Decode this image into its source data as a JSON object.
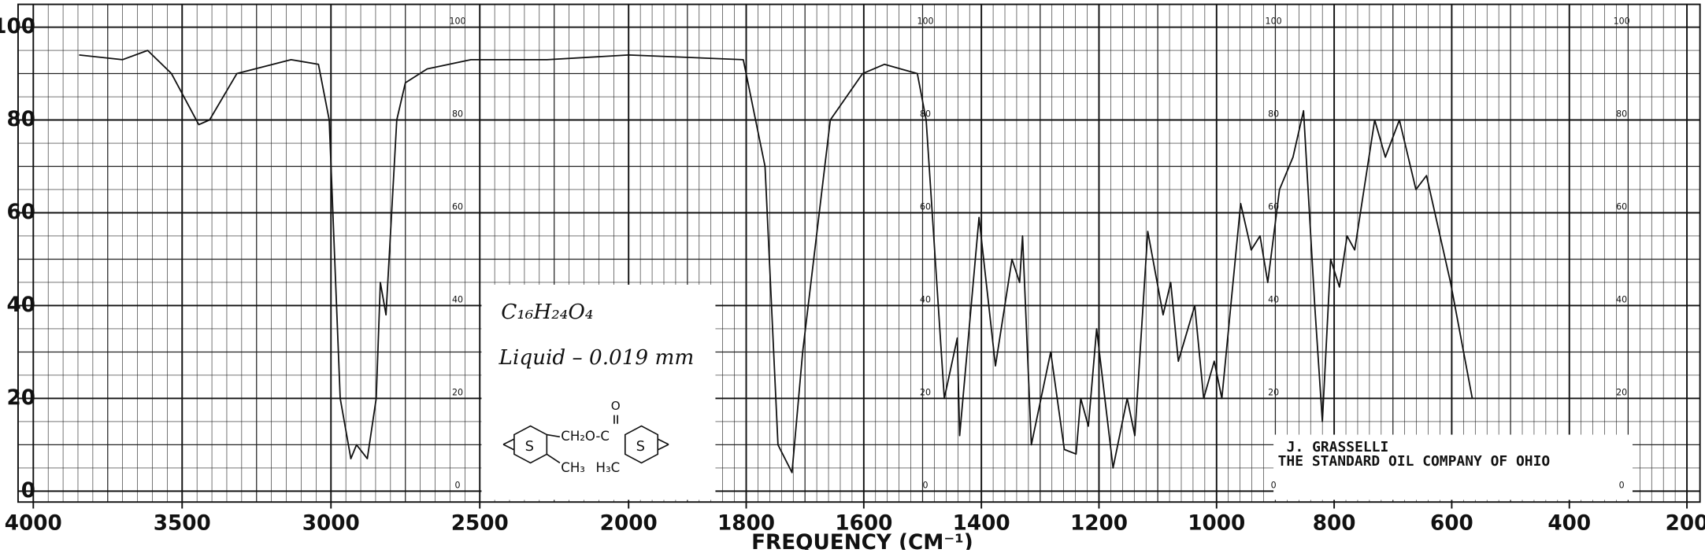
{
  "chart_data": {
    "type": "line",
    "xlabel": "FREQUENCY (CM⁻¹)",
    "xlim": [
      4000,
      200
    ],
    "xbreak": 2000,
    "xticks": [
      4000,
      3500,
      3000,
      2500,
      2000,
      1800,
      1600,
      1400,
      1200,
      1000,
      800,
      600,
      400,
      200
    ],
    "ylim": [
      0,
      100
    ],
    "yticks": [
      0,
      20,
      40,
      60,
      80,
      100
    ],
    "grid": true,
    "color": "#111111",
    "x": [
      3846,
      3700,
      3616,
      3536,
      3444,
      3408,
      3316,
      3134,
      3042,
      3006,
      2969,
      2933,
      2914,
      2878,
      2848,
      2834,
      2815,
      2779,
      2750,
      2677,
      2530,
      2274,
      2000,
      1805,
      1768,
      1746,
      1722,
      1704,
      1657,
      1602,
      1565,
      1509,
      1494,
      1463,
      1441,
      1437,
      1404,
      1376,
      1348,
      1335,
      1330,
      1315,
      1282,
      1259,
      1239,
      1231,
      1218,
      1204,
      1176,
      1152,
      1139,
      1117,
      1091,
      1078,
      1065,
      1037,
      1022,
      1004,
      991,
      959,
      941,
      926,
      913,
      893,
      870,
      852,
      833,
      820,
      806,
      791,
      778,
      765,
      731,
      713,
      689,
      661,
      643,
      602,
      565
    ],
    "values": [
      94,
      93,
      95,
      90,
      79,
      80,
      90,
      93,
      92,
      80,
      20,
      7,
      10,
      7,
      20,
      45,
      38,
      80,
      88,
      91,
      93,
      93,
      94,
      93,
      70,
      10,
      4,
      30,
      80,
      90,
      92,
      90,
      80,
      20,
      33,
      12,
      59,
      27,
      50,
      45,
      55,
      10,
      30,
      9,
      8,
      20,
      14,
      35,
      5,
      20,
      12,
      56,
      38,
      45,
      28,
      40,
      20,
      28,
      20,
      62,
      52,
      55,
      45,
      65,
      72,
      82,
      40,
      15,
      50,
      44,
      55,
      52,
      80,
      72,
      80,
      65,
      68,
      45,
      20
    ],
    "annotations": {
      "formula": "C₁₆H₂₄O₄",
      "sample": "Liquid – 0.019 mm",
      "structure": [
        "S",
        "CH₂O-C",
        "O",
        "CH₃",
        "H₃C",
        "S"
      ],
      "author": "J. GRASSELLI",
      "company": "THE STANDARD OIL COMPANY OF OHIO"
    }
  }
}
